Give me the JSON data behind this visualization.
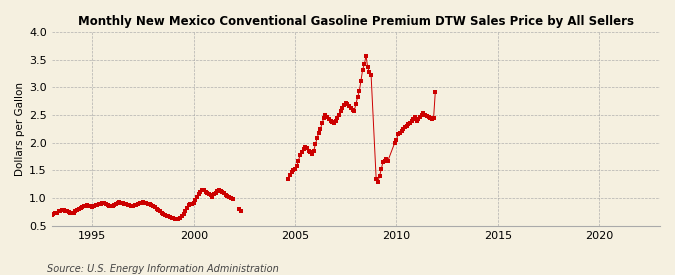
{
  "title": "Monthly New Mexico Conventional Gasoline Premium DTW Sales Price by All Sellers",
  "ylabel": "Dollars per Gallon",
  "source": "Source: U.S. Energy Information Administration",
  "background_color": "#f5f0e0",
  "line_color": "#cc0000",
  "xlim": [
    1993.0,
    2023.0
  ],
  "ylim": [
    0.5,
    4.0
  ],
  "yticks": [
    0.5,
    1.0,
    1.5,
    2.0,
    2.5,
    3.0,
    3.5,
    4.0
  ],
  "xticks": [
    1995,
    2000,
    2005,
    2010,
    2015,
    2020
  ],
  "segments": [
    {
      "dates": [
        1993.0,
        1993.083,
        1993.167,
        1993.25,
        1993.333,
        1993.417,
        1993.5,
        1993.583,
        1993.667,
        1993.75,
        1993.833,
        1993.917,
        1994.0,
        1994.083,
        1994.167,
        1994.25,
        1994.333,
        1994.417,
        1994.5,
        1994.583,
        1994.667,
        1994.75,
        1994.833,
        1994.917,
        1995.0,
        1995.083,
        1995.167,
        1995.25,
        1995.333,
        1995.417,
        1995.5,
        1995.583,
        1995.667,
        1995.75,
        1995.833,
        1995.917,
        1996.0,
        1996.083,
        1996.167,
        1996.25,
        1996.333,
        1996.417,
        1996.5,
        1996.583,
        1996.667,
        1996.75,
        1996.833,
        1996.917,
        1997.0,
        1997.083,
        1997.167,
        1997.25,
        1997.333,
        1997.417,
        1997.5,
        1997.583,
        1997.667,
        1997.75,
        1997.833,
        1997.917,
        1998.0,
        1998.083,
        1998.167,
        1998.25,
        1998.333,
        1998.417,
        1998.5,
        1998.583,
        1998.667,
        1998.75,
        1998.833,
        1998.917,
        1999.0,
        1999.083,
        1999.167,
        1999.25,
        1999.333,
        1999.417,
        1999.5,
        1999.583,
        1999.667,
        1999.75,
        1999.833,
        1999.917,
        2000.0,
        2000.083,
        2000.167,
        2000.25,
        2000.333,
        2000.417,
        2000.5,
        2000.583,
        2000.667,
        2000.75,
        2000.833,
        2000.917,
        2001.0,
        2001.083,
        2001.167,
        2001.25,
        2001.333,
        2001.417,
        2001.5,
        2001.583,
        2001.667,
        2001.75,
        2001.833,
        2001.917
      ],
      "values": [
        0.7,
        0.71,
        0.73,
        0.74,
        0.76,
        0.77,
        0.79,
        0.78,
        0.77,
        0.76,
        0.75,
        0.74,
        0.73,
        0.74,
        0.76,
        0.78,
        0.8,
        0.82,
        0.84,
        0.85,
        0.86,
        0.87,
        0.86,
        0.85,
        0.84,
        0.85,
        0.87,
        0.88,
        0.89,
        0.9,
        0.91,
        0.92,
        0.9,
        0.88,
        0.86,
        0.85,
        0.86,
        0.88,
        0.9,
        0.92,
        0.93,
        0.92,
        0.91,
        0.9,
        0.89,
        0.88,
        0.87,
        0.86,
        0.86,
        0.87,
        0.88,
        0.9,
        0.91,
        0.92,
        0.93,
        0.92,
        0.91,
        0.9,
        0.89,
        0.88,
        0.86,
        0.84,
        0.81,
        0.79,
        0.76,
        0.73,
        0.71,
        0.69,
        0.68,
        0.67,
        0.66,
        0.65,
        0.64,
        0.63,
        0.62,
        0.63,
        0.65,
        0.68,
        0.72,
        0.77,
        0.82,
        0.87,
        0.89,
        0.9,
        0.92,
        0.97,
        1.03,
        1.08,
        1.12,
        1.15,
        1.14,
        1.12,
        1.1,
        1.07,
        1.05,
        1.03,
        1.07,
        1.1,
        1.13,
        1.14,
        1.13,
        1.11,
        1.09,
        1.06,
        1.04,
        1.02,
        1.0,
        0.99
      ]
    },
    {
      "dates": [
        2002.25,
        2002.333
      ],
      "values": [
        0.8,
        0.76
      ]
    },
    {
      "dates": [
        2004.667,
        2004.75,
        2004.833,
        2004.917,
        2005.0,
        2005.083,
        2005.167,
        2005.25,
        2005.333,
        2005.417,
        2005.5,
        2005.583,
        2005.667,
        2005.75,
        2005.833,
        2005.917,
        2006.0,
        2006.083,
        2006.167,
        2006.25,
        2006.333,
        2006.417,
        2006.5,
        2006.583,
        2006.667,
        2006.75,
        2006.833,
        2006.917,
        2007.0,
        2007.083,
        2007.167,
        2007.25,
        2007.333,
        2007.417,
        2007.5,
        2007.583,
        2007.667,
        2007.75,
        2007.833,
        2007.917,
        2008.0,
        2008.083,
        2008.167,
        2008.25,
        2008.333,
        2008.417,
        2008.5,
        2008.583,
        2008.667,
        2008.75,
        2009.0,
        2009.083,
        2009.167,
        2009.25,
        2009.333,
        2009.417,
        2009.5,
        2009.583,
        2009.917,
        2010.0,
        2010.083,
        2010.167,
        2010.25,
        2010.333,
        2010.417,
        2010.5,
        2010.583,
        2010.667,
        2010.75,
        2010.833,
        2010.917,
        2011.0,
        2011.083,
        2011.167,
        2011.25,
        2011.333,
        2011.417,
        2011.5,
        2011.583,
        2011.667,
        2011.75,
        2011.833,
        2011.917
      ],
      "values": [
        1.35,
        1.42,
        1.47,
        1.5,
        1.52,
        1.58,
        1.68,
        1.78,
        1.83,
        1.88,
        1.92,
        1.9,
        1.86,
        1.83,
        1.8,
        1.85,
        1.97,
        2.08,
        2.18,
        2.25,
        2.35,
        2.45,
        2.5,
        2.47,
        2.43,
        2.4,
        2.38,
        2.36,
        2.4,
        2.45,
        2.5,
        2.57,
        2.63,
        2.68,
        2.72,
        2.7,
        2.67,
        2.63,
        2.6,
        2.57,
        2.7,
        2.82,
        2.93,
        3.12,
        3.32,
        3.42,
        3.57,
        3.36,
        3.27,
        3.22,
        1.35,
        1.3,
        1.4,
        1.52,
        1.65,
        1.68,
        1.7,
        1.68,
        2.0,
        2.05,
        2.15,
        2.18,
        2.22,
        2.25,
        2.28,
        2.3,
        2.33,
        2.36,
        2.4,
        2.43,
        2.46,
        2.4,
        2.43,
        2.47,
        2.5,
        2.53,
        2.5,
        2.48,
        2.47,
        2.45,
        2.43,
        2.45,
        2.92
      ]
    }
  ]
}
